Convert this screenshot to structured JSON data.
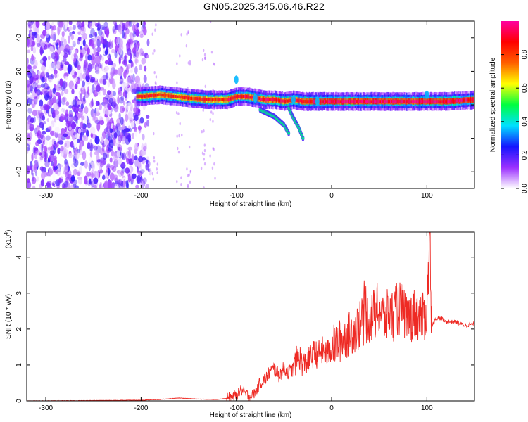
{
  "title": "GN05.2025.345.06.46.R22",
  "chart_data": [
    {
      "type": "heatmap",
      "title": "",
      "xlabel": "Height of straight line (km)",
      "ylabel": "Frequency (Hz)",
      "xlim": [
        -320,
        150
      ],
      "ylim": [
        -50,
        50
      ],
      "xticks": [
        -300,
        -200,
        -100,
        0,
        100
      ],
      "yticks": [
        -40,
        -20,
        0,
        20,
        40
      ],
      "colorbar": {
        "label": "Normalized spectral amplitude",
        "range": [
          0,
          1
        ],
        "ticks": [
          "0.0",
          "0.2",
          "0.4",
          "0.6",
          "0.8"
        ],
        "tick_values": [
          0,
          0.2,
          0.4,
          0.6,
          0.8
        ],
        "colors": [
          "#ffffff",
          "#9b30ff",
          "#1414ff",
          "#00e0ff",
          "#00ff40",
          "#ffff00",
          "#ff6000",
          "#ff0000",
          "#ff00a0"
        ]
      },
      "ridge": {
        "x": [
          -200,
          -180,
          -165,
          -150,
          -130,
          -110,
          -100,
          -90,
          -80,
          -70,
          -60,
          -50,
          -40,
          -30,
          -20,
          -10,
          0,
          20,
          40,
          60,
          80,
          100,
          120,
          150
        ],
        "frequency": [
          5,
          6,
          5,
          4,
          3,
          3,
          5,
          5,
          4,
          3,
          3,
          2,
          3,
          2,
          2,
          2,
          2,
          2,
          2,
          2,
          2,
          2,
          2,
          3
        ]
      },
      "branches": [
        {
          "x": [
            -75,
            -60,
            -50,
            -45
          ],
          "frequency": [
            -3,
            -7,
            -12,
            -17
          ]
        },
        {
          "x": [
            -45,
            -40,
            -35,
            -30
          ],
          "frequency": [
            -2,
            -8,
            -13,
            -20
          ]
        }
      ]
    },
    {
      "type": "line",
      "title": "",
      "xlabel": "Height of straight line (km)",
      "ylabel": "SNR (10 * v/v)",
      "scale_label": "(x10",
      "scale_exp": "4",
      "scale_close": ")",
      "xlim": [
        -320,
        150
      ],
      "ylim": [
        0,
        4.7
      ],
      "xticks": [
        -300,
        -200,
        -100,
        0,
        100
      ],
      "yticks": [
        0,
        1,
        2,
        3,
        4
      ],
      "color": "#ee2a24",
      "series": [
        {
          "x": [
            -320,
            -250,
            -200,
            -180,
            -160,
            -140,
            -120,
            -110,
            -100,
            -95,
            -90,
            -85,
            -80,
            -75,
            -70,
            -65,
            -60,
            -55,
            -50,
            -45,
            -40,
            -35,
            -30,
            -25,
            -20,
            -15,
            -10,
            -5,
            0,
            5,
            10,
            15,
            20,
            25,
            30,
            35,
            40,
            45,
            50,
            55,
            60,
            65,
            70,
            75,
            80,
            85,
            90,
            95,
            100,
            103,
            105,
            110,
            115,
            120,
            130,
            140,
            150
          ],
          "y": [
            0.0,
            0.01,
            0.02,
            0.04,
            0.08,
            0.05,
            0.04,
            0.07,
            0.15,
            0.3,
            0.2,
            0.1,
            0.25,
            0.5,
            0.6,
            0.8,
            0.9,
            0.7,
            0.9,
            0.8,
            0.9,
            1.3,
            1.0,
            1.1,
            1.3,
            1.3,
            1.4,
            1.3,
            1.5,
            1.6,
            1.7,
            1.8,
            1.9,
            2.0,
            2.1,
            2.3,
            2.3,
            2.4,
            2.6,
            2.3,
            2.4,
            2.4,
            2.6,
            2.5,
            2.3,
            2.4,
            2.4,
            2.3,
            2.5,
            4.7,
            2.1,
            2.3,
            2.3,
            2.2,
            2.2,
            2.1,
            2.15
          ]
        }
      ]
    }
  ]
}
